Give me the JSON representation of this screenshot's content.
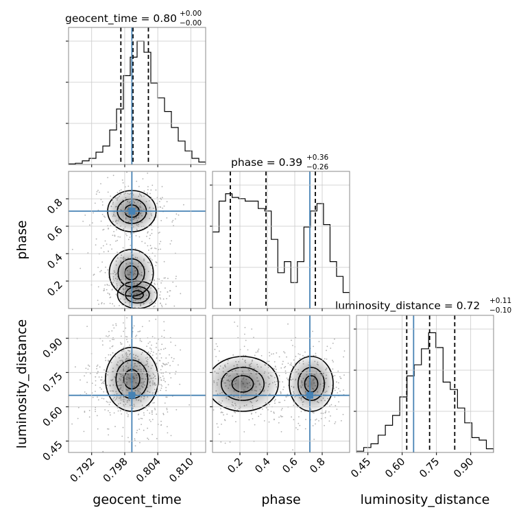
{
  "chart_data": {
    "type": "corner",
    "parameters": [
      "geocent_time",
      "phase",
      "luminosity_distance"
    ],
    "labels": {
      "geocent_time": "geocent_time",
      "phase": "phase",
      "luminosity_distance": "luminosity_distance"
    },
    "titles": {
      "geocent_time": {
        "prefix": "geocent_time = 0.80",
        "plus": "+0.00",
        "minus": "−0.00"
      },
      "phase": {
        "prefix": "phase = 0.39",
        "plus": "+0.36",
        "minus": "−0.26"
      },
      "luminosity_distance": {
        "prefix": "luminosity_distance = 0.72",
        "plus": "+0.11",
        "minus": "−0.10"
      }
    },
    "ranges": {
      "geocent_time": [
        0.7878,
        0.8127
      ],
      "phase": [
        0.0,
        1.0
      ],
      "luminosity_distance": [
        0.4,
        1.0
      ]
    },
    "ticks": {
      "geocent_time": [
        0.792,
        0.798,
        0.804,
        0.81
      ],
      "phase": [
        0.2,
        0.4,
        0.6,
        0.8
      ],
      "luminosity_distance": [
        0.45,
        0.6,
        0.75,
        0.9
      ]
    },
    "tick_labels": {
      "geocent_time": [
        "0.792",
        "0.798",
        "0.804",
        "0.810"
      ],
      "phase": [
        "0.2",
        "0.4",
        "0.6",
        "0.8"
      ],
      "luminosity_distance": [
        "0.45",
        "0.60",
        "0.75",
        "0.90"
      ]
    },
    "truths": {
      "geocent_time": 0.7993,
      "phase": 0.71,
      "luminosity_distance": 0.65
    },
    "quantiles": {
      "geocent_time": [
        0.7973,
        0.7995,
        0.8023
      ],
      "phase": [
        0.13,
        0.39,
        0.75
      ],
      "luminosity_distance": [
        0.62,
        0.72,
        0.83
      ]
    },
    "histograms": {
      "geocent_time": [
        0.005,
        0.01,
        0.03,
        0.05,
        0.1,
        0.15,
        0.28,
        0.45,
        0.72,
        0.87,
        1.0,
        0.91,
        0.66,
        0.54,
        0.43,
        0.3,
        0.19,
        0.11,
        0.05,
        0.02
      ],
      "phase": [
        0.62,
        0.87,
        0.93,
        0.9,
        0.89,
        0.87,
        0.87,
        0.81,
        0.79,
        0.56,
        0.29,
        0.38,
        0.21,
        0.38,
        0.66,
        0.79,
        0.85,
        0.68,
        0.38,
        0.26,
        0.13
      ],
      "luminosity_distance": [
        0.01,
        0.04,
        0.07,
        0.14,
        0.22,
        0.3,
        0.45,
        0.62,
        0.71,
        0.84,
        0.97,
        0.85,
        0.57,
        0.51,
        0.36,
        0.24,
        0.12,
        0.1,
        0.03
      ]
    },
    "colors": {
      "truth": "#4682b4",
      "quantile": "#000000",
      "contour": "#000000",
      "density_max": "#000000",
      "points": "#b0b0b0"
    },
    "grid": true
  }
}
